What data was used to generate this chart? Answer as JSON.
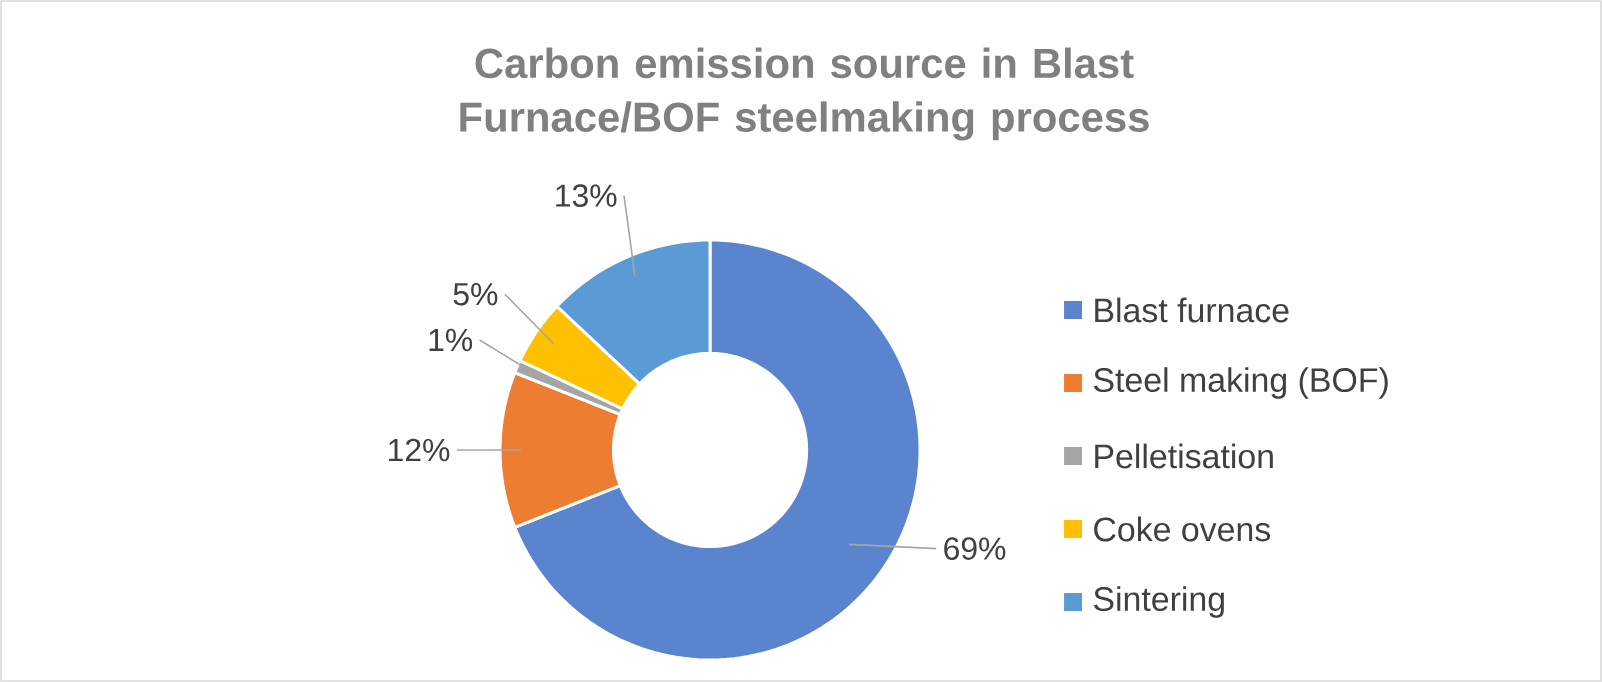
{
  "chart_data": {
    "type": "donut",
    "title": "Carbon emission source in Blast Furnace/BOF steelmaking process",
    "categories": [
      "Blast furnace",
      "Steel making (BOF)",
      "Pelletisation",
      "Coke ovens",
      "Sintering"
    ],
    "values": [
      69,
      12,
      1,
      5,
      13
    ],
    "value_labels": [
      "69%",
      "12%",
      "1%",
      "5%",
      "13%"
    ],
    "colors": [
      "#5b84cf",
      "#ed7d31",
      "#a5a5a5",
      "#ffc000",
      "#5b9bd5"
    ],
    "legend": "right"
  }
}
